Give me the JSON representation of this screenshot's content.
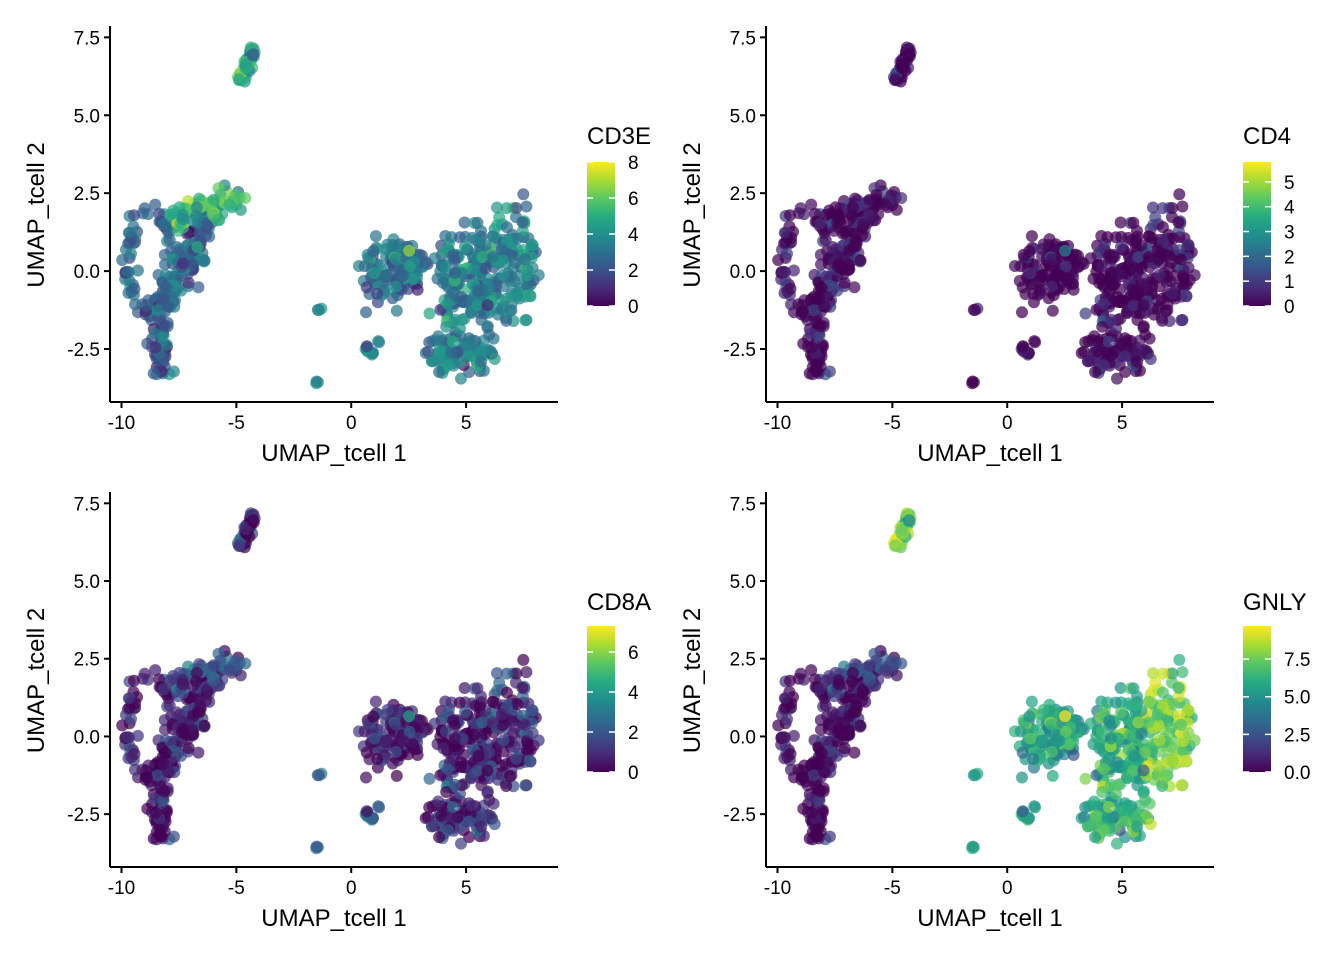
{
  "colors": {
    "viridis": [
      "#440154",
      "#472c7a",
      "#3b518b",
      "#2c718e",
      "#21908d",
      "#27ad81",
      "#5cc863",
      "#aadc32",
      "#fde725"
    ],
    "axis": "#000000",
    "background": "#ffffff"
  },
  "chart_data": [
    {
      "type": "scatter",
      "feature": "CD3E",
      "xlabel": "UMAP_tcell 1",
      "ylabel": "UMAP_tcell 2",
      "xlim": [
        -10.5,
        9.0
      ],
      "ylim": [
        -4.2,
        7.8
      ],
      "xticks": [
        -10,
        -5,
        0,
        5
      ],
      "xtick_labels": [
        "-10",
        "-5",
        "0",
        "5"
      ],
      "yticks": [
        -2.5,
        0.0,
        2.5,
        5.0,
        7.5
      ],
      "ytick_labels": [
        "-2.5",
        "0.0",
        "2.5",
        "5.0",
        "7.5"
      ],
      "legend": {
        "title": "CD3E",
        "min": 0,
        "max": 8,
        "ticks": [
          0,
          2,
          4,
          6,
          8
        ],
        "tick_labels": [
          "0",
          "2",
          "4",
          "6",
          "8"
        ],
        "position": "right"
      },
      "expression": {
        "left": 0.32,
        "upper": 0.58,
        "blob": 0.42,
        "top": 0.6,
        "island": 0.45
      }
    },
    {
      "type": "scatter",
      "feature": "CD4",
      "xlabel": "UMAP_tcell 1",
      "ylabel": "UMAP_tcell 2",
      "xlim": [
        -10.5,
        9.0
      ],
      "ylim": [
        -4.2,
        7.8
      ],
      "xticks": [
        -10,
        -5,
        0,
        5
      ],
      "xtick_labels": [
        "-10",
        "-5",
        "0",
        "5"
      ],
      "yticks": [
        -2.5,
        0.0,
        2.5,
        5.0,
        7.5
      ],
      "ytick_labels": [
        "-2.5",
        "0.0",
        "2.5",
        "5.0",
        "7.5"
      ],
      "legend": {
        "title": "CD4",
        "min": 0,
        "max": 5.8,
        "ticks": [
          0,
          1,
          2,
          3,
          4,
          5
        ],
        "tick_labels": [
          "0",
          "1",
          "2",
          "3",
          "4",
          "5"
        ],
        "position": "right"
      },
      "expression": {
        "left": 0.05,
        "upper": 0.06,
        "blob": 0.01,
        "top": 0.02,
        "island": 0.03
      }
    },
    {
      "type": "scatter",
      "feature": "CD8A",
      "xlabel": "UMAP_tcell 1",
      "ylabel": "UMAP_tcell 2",
      "xlim": [
        -10.5,
        9.0
      ],
      "ylim": [
        -4.2,
        7.8
      ],
      "xticks": [
        -10,
        -5,
        0,
        5
      ],
      "xtick_labels": [
        "-10",
        "-5",
        "0",
        "5"
      ],
      "yticks": [
        -2.5,
        0.0,
        2.5,
        5.0,
        7.5
      ],
      "ytick_labels": [
        "-2.5",
        "0.0",
        "2.5",
        "5.0",
        "7.5"
      ],
      "legend": {
        "title": "CD8A",
        "min": 0,
        "max": 7.3,
        "ticks": [
          0,
          2,
          4,
          6
        ],
        "tick_labels": [
          "0",
          "2",
          "4",
          "6"
        ],
        "position": "right"
      },
      "expression": {
        "left": 0.1,
        "upper": 0.25,
        "blob": 0.15,
        "top": 0.15,
        "island": 0.3
      }
    },
    {
      "type": "scatter",
      "feature": "GNLY",
      "xlabel": "UMAP_tcell 1",
      "ylabel": "UMAP_tcell 2",
      "xlim": [
        -10.5,
        9.0
      ],
      "ylim": [
        -4.2,
        7.8
      ],
      "xticks": [
        -10,
        -5,
        0,
        5
      ],
      "xtick_labels": [
        "-10",
        "-5",
        "0",
        "5"
      ],
      "yticks": [
        -2.5,
        0.0,
        2.5,
        5.0,
        7.5
      ],
      "ytick_labels": [
        "-2.5",
        "0.0",
        "2.5",
        "5.0",
        "7.5"
      ],
      "legend": {
        "title": "GNLY",
        "min": 0,
        "max": 9.7,
        "ticks": [
          0,
          2.5,
          5,
          7.5
        ],
        "tick_labels": [
          "0.0",
          "2.5",
          "5.0",
          "7.5"
        ],
        "position": "right"
      },
      "expression": {
        "left": 0.03,
        "upper": 0.2,
        "blob": 0.62,
        "top": 0.8,
        "island": 0.55
      }
    }
  ]
}
